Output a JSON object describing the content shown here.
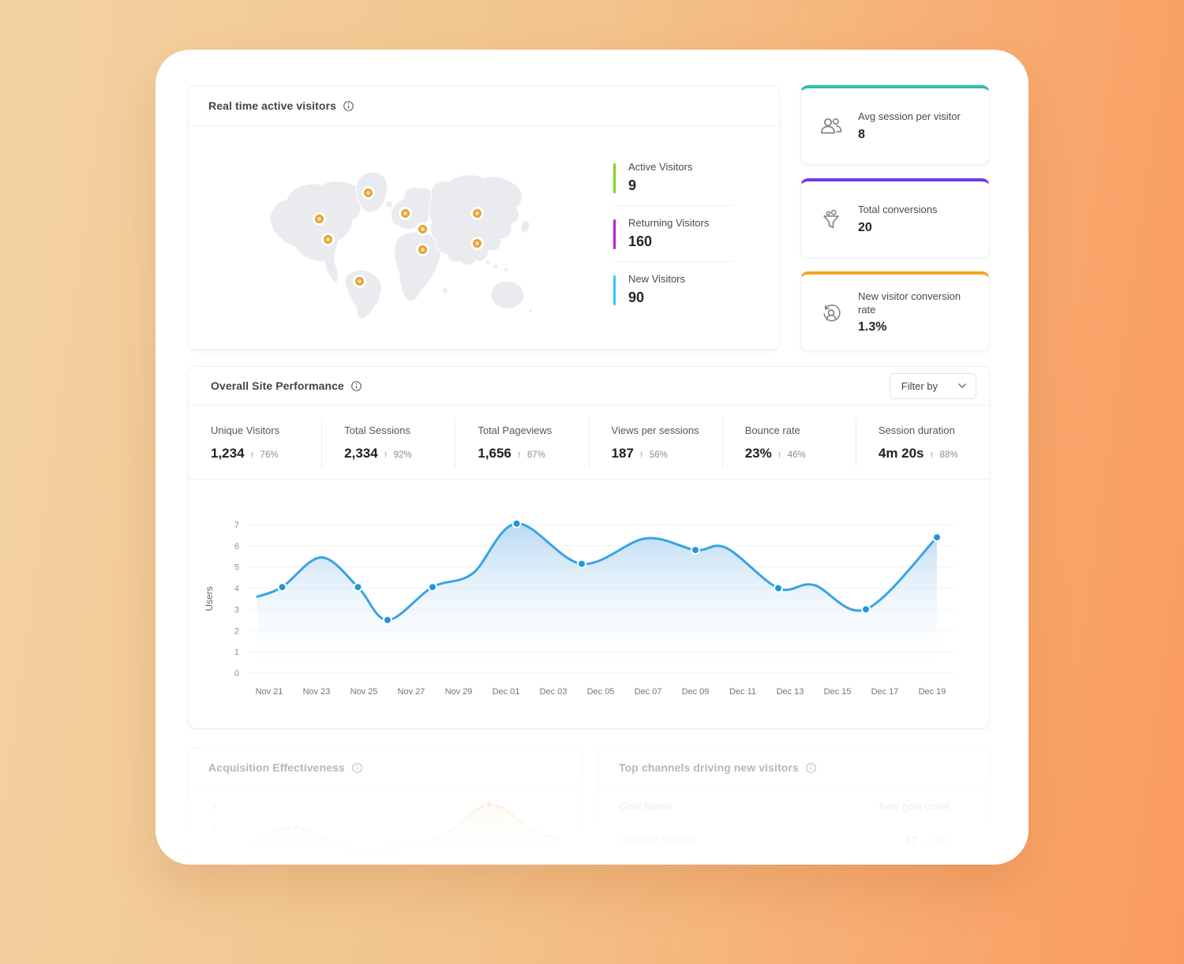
{
  "glyphs": {
    "up_arrow": "↑"
  },
  "realtime_card": {
    "title": "Real time active visitors",
    "legend": [
      {
        "label": "Active Visitors",
        "value": "9",
        "color": "#7ED321"
      },
      {
        "label": "Returning Visitors",
        "value": "160",
        "color": "#B620E0"
      },
      {
        "label": "New  Visitors",
        "value": "90",
        "color": "#32C5FF"
      }
    ],
    "map_markers": [
      {
        "name": "greenland",
        "x": 38.4,
        "y": 26.4
      },
      {
        "name": "canada",
        "x": 21.6,
        "y": 41.4
      },
      {
        "name": "usa",
        "x": 24.4,
        "y": 53.6
      },
      {
        "name": "brazil",
        "x": 35.6,
        "y": 77.3
      },
      {
        "name": "scandinavia",
        "x": 51.5,
        "y": 38.2
      },
      {
        "name": "east-europe",
        "x": 57.5,
        "y": 47.7
      },
      {
        "name": "middle-east",
        "x": 57.5,
        "y": 59.5
      },
      {
        "name": "russia",
        "x": 76.4,
        "y": 38.2
      },
      {
        "name": "china",
        "x": 76.2,
        "y": 55.5
      }
    ]
  },
  "kpi_cards": [
    {
      "label": "Avg session per visitor",
      "value": "8",
      "accent": "#2BBFA3",
      "icon": "people-icon"
    },
    {
      "label": "Total conversions",
      "value": "20",
      "accent": "#6B3BF0",
      "icon": "funnel-icon"
    },
    {
      "label": "New visitor conversion rate",
      "value": "1.3%",
      "accent": "#F5A623",
      "icon": "person-refresh-icon"
    }
  ],
  "performance_card": {
    "title": "Overall Site Performance",
    "filter_label": "Filter by",
    "stats": [
      {
        "label": "Unique Visitors",
        "value": "1,234",
        "delta": "76%"
      },
      {
        "label": "Total Sessions",
        "value": "2,334",
        "delta": "92%"
      },
      {
        "label": "Total Pageviews",
        "value": "1,656",
        "delta": "87%"
      },
      {
        "label": "Views per sessions",
        "value": "187",
        "delta": "56%"
      },
      {
        "label": "Bounce rate",
        "value": "23%",
        "delta": "46%"
      },
      {
        "label": "Session duration",
        "value": "4m 20s",
        "delta": "88%"
      }
    ]
  },
  "bottom_left_card": {
    "title": "Acquisition Effectiveness"
  },
  "bottom_right_card": {
    "title": "Top channels driving new visitors",
    "columns": [
      "Goal Name",
      "Total goal count"
    ],
    "rows": [
      {
        "name": "Organic Search",
        "value": "67",
        "delta": "89%"
      }
    ]
  },
  "chart_data": [
    {
      "type": "area",
      "title": "Overall Site Performance — daily users",
      "xlabel": "",
      "ylabel": "Users",
      "ylim": [
        0,
        7
      ],
      "yticks": [
        0,
        1,
        2,
        3,
        4,
        5,
        6,
        7
      ],
      "grid": true,
      "line_color": "#38a3e6",
      "dot_color": "#1f97dd",
      "xticklabels": [
        "Nov 21",
        "Nov 23",
        "Nov 25",
        "Nov 27",
        "Nov 29",
        "Dec 01",
        "Dec 03",
        "Dec 05",
        "Dec 07",
        "Dec 09",
        "Dec 11",
        "Dec 13",
        "Dec 15",
        "Dec 17",
        "Dec 19"
      ],
      "tick_day_step": 2,
      "x_day_range": [
        -0.5,
        29.0
      ],
      "points": [
        {
          "day": -0.5,
          "value": 3.6,
          "dot": false
        },
        {
          "day": 0.55,
          "value": 4.05,
          "dot": true
        },
        {
          "day": 2.2,
          "value": 5.45,
          "dot": false
        },
        {
          "day": 3.75,
          "value": 4.05,
          "dot": true
        },
        {
          "day": 5.0,
          "value": 2.5,
          "dot": true
        },
        {
          "day": 6.9,
          "value": 4.05,
          "dot": true
        },
        {
          "day": 8.6,
          "value": 4.7,
          "dot": false
        },
        {
          "day": 10.45,
          "value": 7.05,
          "dot": true
        },
        {
          "day": 13.2,
          "value": 5.15,
          "dot": true
        },
        {
          "day": 15.9,
          "value": 6.35,
          "dot": false
        },
        {
          "day": 18.0,
          "value": 5.8,
          "dot": true
        },
        {
          "day": 19.3,
          "value": 5.9,
          "dot": false
        },
        {
          "day": 21.5,
          "value": 4.0,
          "dot": true
        },
        {
          "day": 23.0,
          "value": 4.15,
          "dot": false
        },
        {
          "day": 25.2,
          "value": 3.0,
          "dot": true
        },
        {
          "day": 28.2,
          "value": 6.4,
          "dot": true
        }
      ]
    },
    {
      "type": "area",
      "title": "Acquisition Effectiveness (partially visible)",
      "ylim": [
        0,
        7
      ],
      "yticks_visible": [
        7,
        6
      ],
      "line_color": "#f2b26d",
      "dot_color": "#efa75f",
      "points_frac": [
        {
          "x": 0.0,
          "value": 5.3,
          "dot": false
        },
        {
          "x": 0.13,
          "value": 6.05,
          "dot": true
        },
        {
          "x": 0.3,
          "value": 5.0,
          "dot": false
        },
        {
          "x": 0.55,
          "value": 5.45,
          "dot": false
        },
        {
          "x": 0.72,
          "value": 7.15,
          "dot": true
        },
        {
          "x": 0.85,
          "value": 5.9,
          "dot": false
        },
        {
          "x": 0.93,
          "value": 5.5,
          "dot": true
        }
      ]
    }
  ]
}
